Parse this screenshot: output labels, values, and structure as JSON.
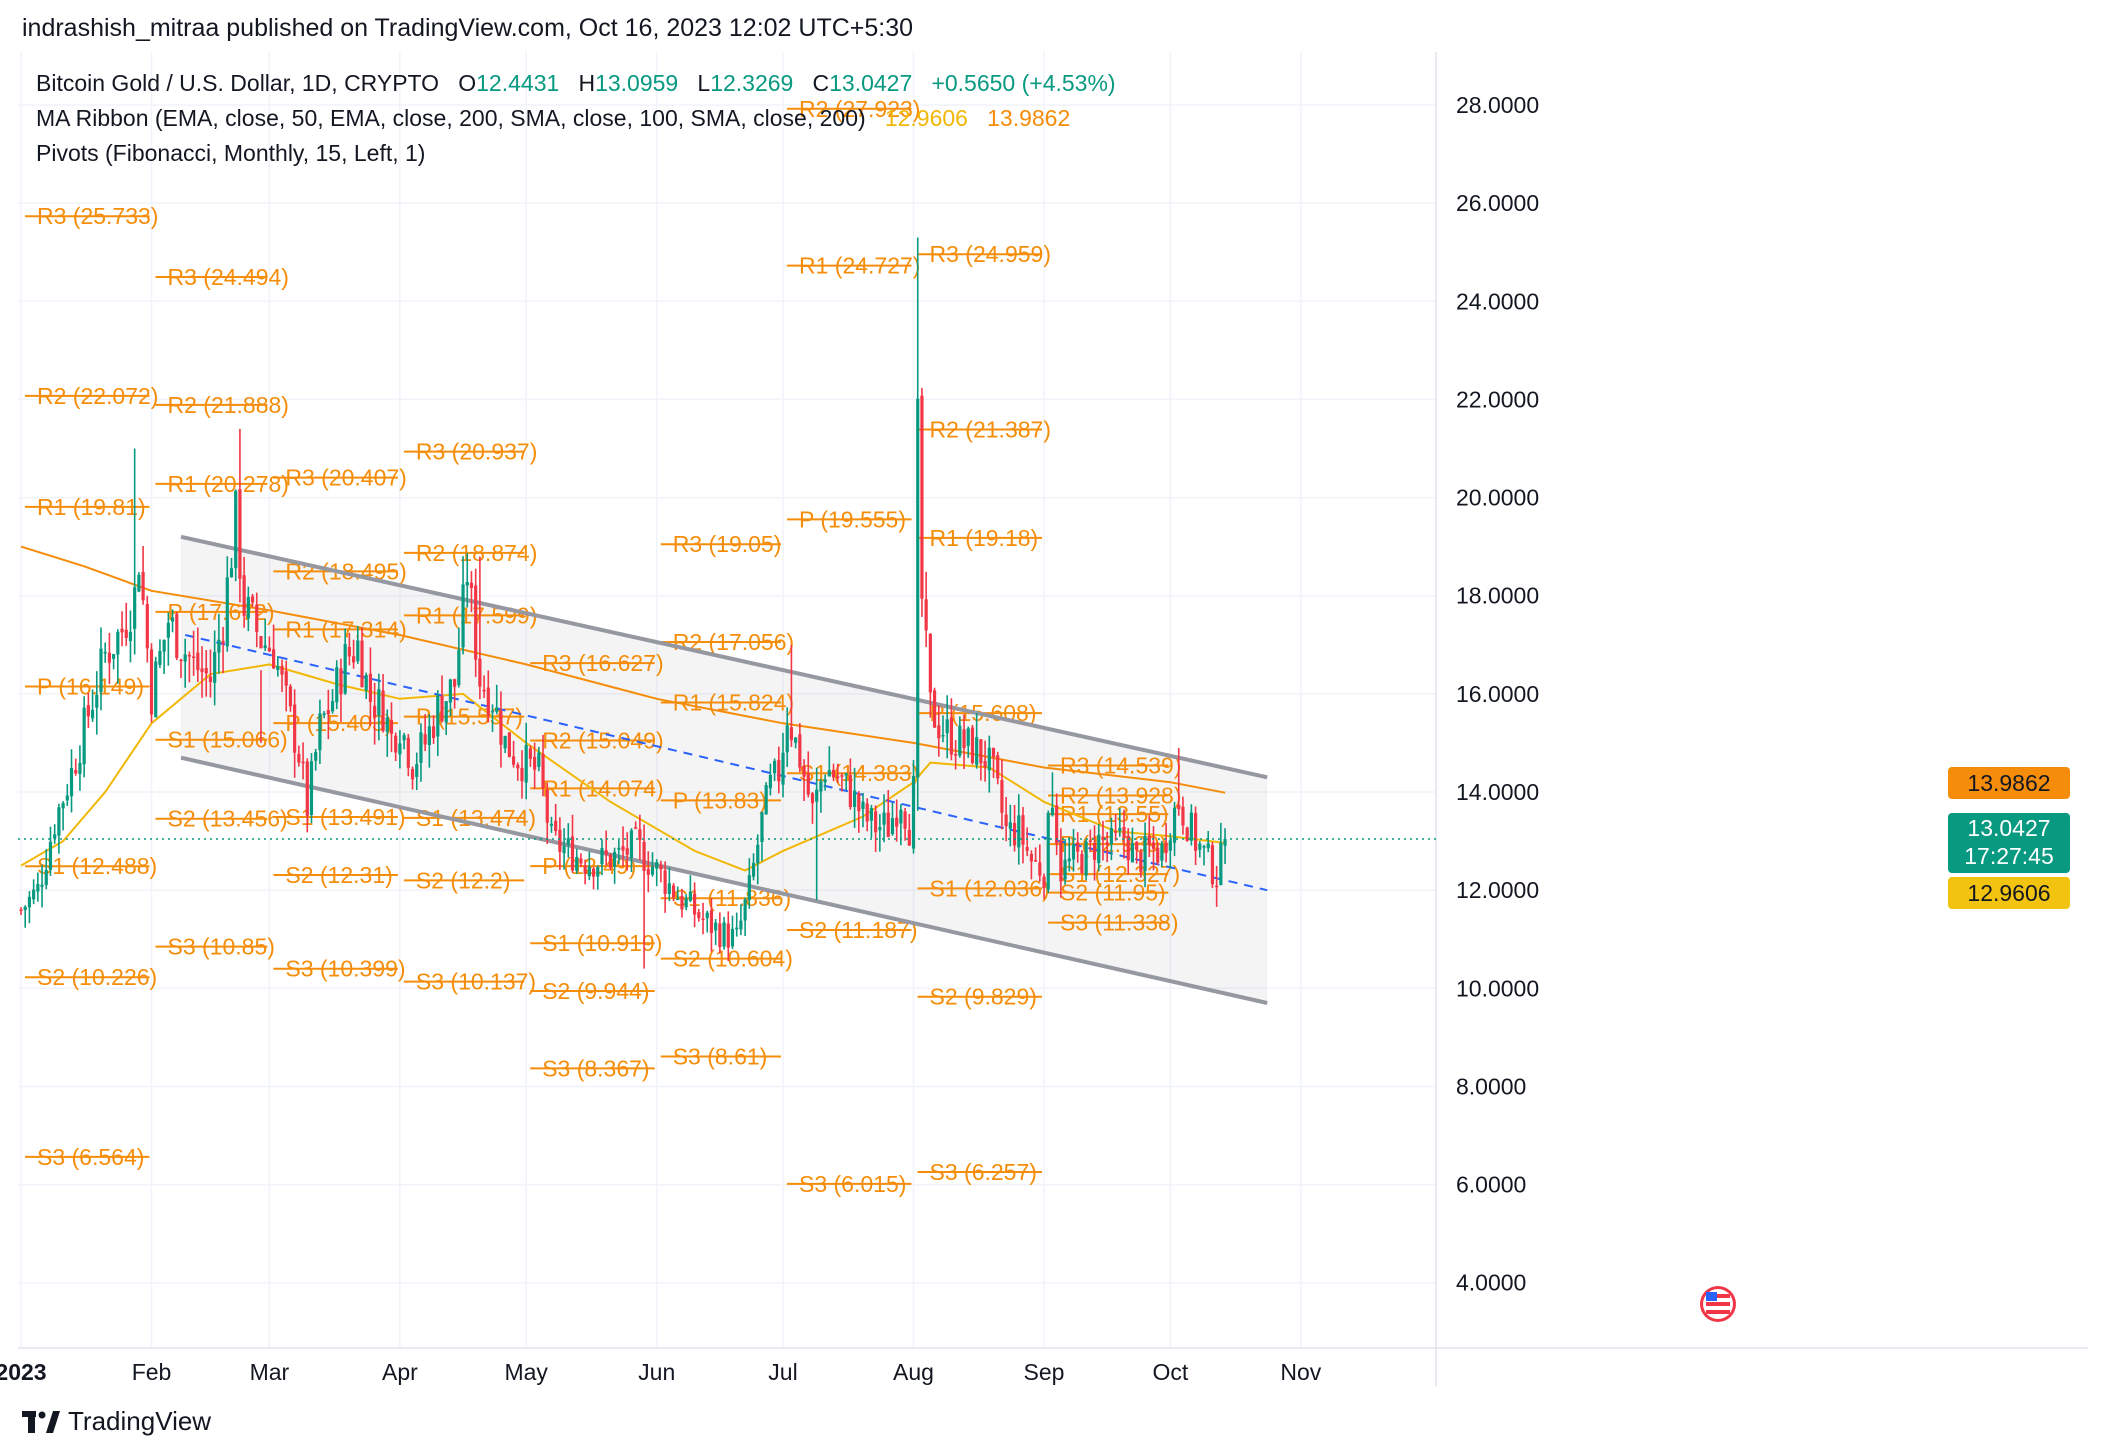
{
  "header": {
    "publisher": "indrashish_mitraa published on TradingView.com, Oct 16, 2023 12:02 UTC+5:30"
  },
  "legend": {
    "symbol": "Bitcoin Gold / U.S. Dollar, 1D, CRYPTO",
    "o_label": "O",
    "o_value": "12.4431",
    "h_label": "H",
    "h_value": "13.0959",
    "l_label": "L",
    "l_value": "12.3269",
    "c_label": "C",
    "c_value": "13.0427",
    "change": "+0.5650 (+4.53%)",
    "ma_label": "MA Ribbon (EMA, close, 50, EMA, close, 200, SMA, close, 100, SMA, close, 200)",
    "ma_value_1": "12.9606",
    "ma_value_2": "13.9862",
    "pivots_label": "Pivots (Fibonacci, Monthly, 15, Left, 1)"
  },
  "price_badges": {
    "ma200": "13.9862",
    "last_price": "13.0427",
    "countdown": "17:27:45",
    "ma50": "12.9606"
  },
  "footer": {
    "brand": "TradingView"
  },
  "colors": {
    "up": "#089981",
    "down": "#f23645",
    "pivot": "#f58d0a",
    "ema50": "#f2b705",
    "ema200": "#f58d0a",
    "channel": "#9598a1",
    "trend": "#2962ff"
  },
  "chart_data": {
    "type": "candlestick",
    "y_axis": {
      "min": 2.67,
      "max": 29.08,
      "ticks": [
        "4.0000",
        "6.0000",
        "8.0000",
        "10.0000",
        "12.0000",
        "14.0000",
        "16.0000",
        "18.0000",
        "20.0000",
        "22.0000",
        "24.0000",
        "26.0000",
        "28.0000"
      ]
    },
    "x_axis": {
      "ticks": [
        "2023",
        "Feb",
        "Mar",
        "Apr",
        "May",
        "Jun",
        "Jul",
        "Aug",
        "Sep",
        "Oct",
        "Nov"
      ]
    },
    "month_days": {
      "2023": 0,
      "Feb": 31,
      "Mar": 59,
      "Apr": 90,
      "May": 120,
      "Jun": 151,
      "Jul": 181,
      "Aug": 212,
      "Sep": 243,
      "Oct": 273,
      "Nov": 304
    },
    "pivot_months": [
      {
        "start_day": 0,
        "end_day": 31,
        "levels": [
          {
            "label": "R3 (25.733)",
            "value": 25.733
          },
          {
            "label": "R2 (22.072)",
            "value": 22.072
          },
          {
            "label": "R1 (19.81)",
            "value": 19.81
          },
          {
            "label": "P (16.149)",
            "value": 16.149
          },
          {
            "label": "S1 (12.488)",
            "value": 12.488
          },
          {
            "label": "S2 (10.226)",
            "value": 10.226
          },
          {
            "label": "S3 (6.564)",
            "value": 6.564
          }
        ]
      },
      {
        "start_day": 31,
        "end_day": 59,
        "levels": [
          {
            "label": "R3 (24.494)",
            "value": 24.494
          },
          {
            "label": "R2 (21.888)",
            "value": 21.888
          },
          {
            "label": "R1 (20.278)",
            "value": 20.278
          },
          {
            "label": "P (17.672)",
            "value": 17.672
          },
          {
            "label": "S1 (15.066)",
            "value": 15.066
          },
          {
            "label": "S2 (13.456)",
            "value": 13.456
          },
          {
            "label": "S3 (10.85)",
            "value": 10.85
          }
        ]
      },
      {
        "start_day": 59,
        "end_day": 90,
        "levels": [
          {
            "label": "R3 (20.407)",
            "value": 20.407
          },
          {
            "label": "R2 (18.495)",
            "value": 18.495
          },
          {
            "label": "R1 (17.314)",
            "value": 17.314
          },
          {
            "label": "P (15.403)",
            "value": 15.403
          },
          {
            "label": "S1 (13.491)",
            "value": 13.491
          },
          {
            "label": "S2 (12.31)",
            "value": 12.31
          },
          {
            "label": "S3 (10.399)",
            "value": 10.399
          }
        ]
      },
      {
        "start_day": 90,
        "end_day": 120,
        "levels": [
          {
            "label": "R3 (20.937)",
            "value": 20.937
          },
          {
            "label": "R2 (18.874)",
            "value": 18.874
          },
          {
            "label": "R1 (17.599)",
            "value": 17.599
          },
          {
            "label": "P (15.537)",
            "value": 15.537
          },
          {
            "label": "S1 (13.474)",
            "value": 13.474
          },
          {
            "label": "S2 (12.2)",
            "value": 12.2
          },
          {
            "label": "S3 (10.137)",
            "value": 10.137
          }
        ]
      },
      {
        "start_day": 120,
        "end_day": 151,
        "levels": [
          {
            "label": "R3 (16.627)",
            "value": 16.627
          },
          {
            "label": "R1 (14.074)",
            "value": 14.074
          },
          {
            "label": "R2 (15.049)",
            "value": 15.049
          },
          {
            "label": "P (12.49)",
            "value": 12.49
          },
          {
            "label": "S1 (10.919)",
            "value": 10.919
          },
          {
            "label": "S2 (9.944)",
            "value": 9.944
          },
          {
            "label": "S3 (8.367)",
            "value": 8.367
          }
        ]
      },
      {
        "start_day": 151,
        "end_day": 181,
        "levels": [
          {
            "label": "R3 (19.05)",
            "value": 19.05
          },
          {
            "label": "R2 (17.056)",
            "value": 17.056
          },
          {
            "label": "R1 (15.824)",
            "value": 15.824
          },
          {
            "label": "P (13.83)",
            "value": 13.83
          },
          {
            "label": "S1 (11.836)",
            "value": 11.836
          },
          {
            "label": "S2 (10.604)",
            "value": 10.604
          },
          {
            "label": "S3 (8.61)",
            "value": 8.61
          }
        ]
      },
      {
        "start_day": 181,
        "end_day": 212,
        "levels": [
          {
            "label": "R2 (27.923)",
            "value": 27.923
          },
          {
            "label": "R1 (24.727)",
            "value": 24.727
          },
          {
            "label": "P (19.555)",
            "value": 19.555
          },
          {
            "label": "S1 (14.383)",
            "value": 14.383
          },
          {
            "label": "S2 (11.187)",
            "value": 11.187
          },
          {
            "label": "S3 (6.015)",
            "value": 6.015
          }
        ]
      },
      {
        "start_day": 212,
        "end_day": 243,
        "levels": [
          {
            "label": "R3 (24.959)",
            "value": 24.959
          },
          {
            "label": "R2 (21.387)",
            "value": 21.387
          },
          {
            "label": "R1 (19.18)",
            "value": 19.18
          },
          {
            "label": "P (15.608)",
            "value": 15.608
          },
          {
            "label": "S1 (12.036)",
            "value": 12.036
          },
          {
            "label": "S2 (9.829)",
            "value": 9.829
          },
          {
            "label": "S3 (6.257)",
            "value": 6.257
          }
        ]
      },
      {
        "start_day": 243,
        "end_day": 273,
        "levels": [
          {
            "label": "R3 (14.539)",
            "value": 14.539
          },
          {
            "label": "R2 (13.928)",
            "value": 13.928
          },
          {
            "label": "R1 (13.55)",
            "value": 13.55
          },
          {
            "label": "P (12.939)",
            "value": 12.939
          },
          {
            "label": "S1 (12.327)",
            "value": 12.327
          },
          {
            "label": "S2 (11.95)",
            "value": 11.95
          },
          {
            "label": "S3 (11.338)",
            "value": 11.338
          }
        ]
      },
      {
        "start_day": 273,
        "end_day": 304,
        "levels": []
      }
    ],
    "price_keypoints": [
      [
        0,
        11.6
      ],
      [
        4,
        12.0
      ],
      [
        8,
        13.4
      ],
      [
        12,
        14.4
      ],
      [
        16,
        15.6
      ],
      [
        20,
        16.8
      ],
      [
        24,
        17.3
      ],
      [
        27,
        18.0
      ],
      [
        28,
        18.8
      ],
      [
        31,
        16.0
      ],
      [
        35,
        17.5
      ],
      [
        38,
        17.0
      ],
      [
        41,
        16.6
      ],
      [
        45,
        16.3
      ],
      [
        48,
        17.5
      ],
      [
        51,
        19.6
      ],
      [
        53,
        17.8
      ],
      [
        57,
        17.1
      ],
      [
        60,
        16.9
      ],
      [
        63,
        15.8
      ],
      [
        66,
        14.8
      ],
      [
        68,
        13.7
      ],
      [
        71,
        15.3
      ],
      [
        74,
        15.9
      ],
      [
        77,
        16.7
      ],
      [
        80,
        17.0
      ],
      [
        83,
        15.9
      ],
      [
        86,
        15.7
      ],
      [
        88,
        15.1
      ],
      [
        90,
        15.4
      ],
      [
        93,
        14.6
      ],
      [
        96,
        15.0
      ],
      [
        99,
        15.7
      ],
      [
        103,
        16.2
      ],
      [
        106,
        18.5
      ],
      [
        109,
        16.3
      ],
      [
        112,
        15.9
      ],
      [
        115,
        15.0
      ],
      [
        118,
        14.7
      ],
      [
        121,
        14.5
      ],
      [
        123,
        14.4
      ],
      [
        126,
        13.0
      ],
      [
        130,
        12.8
      ],
      [
        134,
        12.6
      ],
      [
        138,
        12.6
      ],
      [
        142,
        12.7
      ],
      [
        146,
        12.9
      ],
      [
        150,
        12.5
      ],
      [
        153,
        12.2
      ],
      [
        157,
        11.8
      ],
      [
        162,
        11.4
      ],
      [
        167,
        11.1
      ],
      [
        170,
        11.0
      ],
      [
        173,
        12.0
      ],
      [
        176,
        13.4
      ],
      [
        178,
        14.1
      ],
      [
        180,
        14.4
      ],
      [
        182,
        15.6
      ],
      [
        185,
        14.7
      ],
      [
        188,
        13.6
      ],
      [
        191,
        14.5
      ],
      [
        194,
        14.3
      ],
      [
        197,
        14.0
      ],
      [
        200,
        13.5
      ],
      [
        203,
        13.3
      ],
      [
        206,
        13.3
      ],
      [
        209,
        13.9
      ],
      [
        211,
        13.3
      ],
      [
        212,
        14.0
      ],
      [
        213,
        21.4
      ],
      [
        214,
        17.9
      ],
      [
        216,
        15.7
      ],
      [
        218,
        15.4
      ],
      [
        220,
        15.2
      ],
      [
        223,
        15.0
      ],
      [
        226,
        14.9
      ],
      [
        229,
        14.7
      ],
      [
        231,
        14.3
      ],
      [
        234,
        13.2
      ],
      [
        237,
        13.2
      ],
      [
        240,
        12.6
      ],
      [
        243,
        12.4
      ],
      [
        245,
        14.0
      ],
      [
        247,
        12.4
      ],
      [
        250,
        12.6
      ],
      [
        253,
        12.7
      ],
      [
        256,
        13.0
      ],
      [
        259,
        12.9
      ],
      [
        262,
        13.1
      ],
      [
        265,
        12.6
      ],
      [
        268,
        12.8
      ],
      [
        271,
        12.8
      ],
      [
        273,
        13.4
      ],
      [
        275,
        13.8
      ],
      [
        277,
        13.4
      ],
      [
        279,
        13.0
      ],
      [
        282,
        12.6
      ],
      [
        284,
        12.3
      ],
      [
        285,
        12.6
      ],
      [
        286,
        13.04
      ]
    ],
    "spikes": [
      {
        "day": 27,
        "high": 21.0
      },
      {
        "day": 52,
        "high": 21.4
      },
      {
        "day": 57,
        "high": 15.0
      },
      {
        "day": 109,
        "high": 18.8
      },
      {
        "day": 148,
        "low": 10.4
      },
      {
        "day": 183,
        "high": 17.0
      },
      {
        "day": 189,
        "low": 11.8
      },
      {
        "day": 213,
        "high": 25.3
      },
      {
        "day": 245,
        "high": 14.4
      },
      {
        "day": 275,
        "high": 14.9
      },
      {
        "day": 285,
        "low": 12.1
      }
    ],
    "ema200": [
      [
        0,
        19.0
      ],
      [
        15,
        18.6
      ],
      [
        31,
        18.1
      ],
      [
        59,
        17.7
      ],
      [
        90,
        17.2
      ],
      [
        120,
        16.6
      ],
      [
        151,
        15.9
      ],
      [
        181,
        15.4
      ],
      [
        212,
        15.0
      ],
      [
        243,
        14.5
      ],
      [
        273,
        14.2
      ],
      [
        286,
        13.9862
      ]
    ],
    "ema50": [
      [
        0,
        12.5
      ],
      [
        10,
        13.0
      ],
      [
        20,
        14.0
      ],
      [
        31,
        15.4
      ],
      [
        45,
        16.4
      ],
      [
        59,
        16.6
      ],
      [
        75,
        16.2
      ],
      [
        90,
        15.9
      ],
      [
        105,
        16.0
      ],
      [
        120,
        15.0
      ],
      [
        140,
        13.8
      ],
      [
        160,
        12.8
      ],
      [
        172,
        12.4
      ],
      [
        181,
        12.8
      ],
      [
        200,
        13.5
      ],
      [
        212,
        14.2
      ],
      [
        216,
        14.6
      ],
      [
        230,
        14.5
      ],
      [
        243,
        13.8
      ],
      [
        260,
        13.2
      ],
      [
        273,
        13.1
      ],
      [
        286,
        12.9606
      ]
    ],
    "channel": {
      "upper": [
        [
          38,
          19.2
        ],
        [
          296,
          14.3
        ]
      ],
      "lower": [
        [
          38,
          14.7
        ],
        [
          296,
          9.7
        ]
      ],
      "trend_dashed": [
        [
          39,
          17.2
        ],
        [
          296,
          12.0
        ]
      ]
    },
    "last_price": 13.0427
  }
}
